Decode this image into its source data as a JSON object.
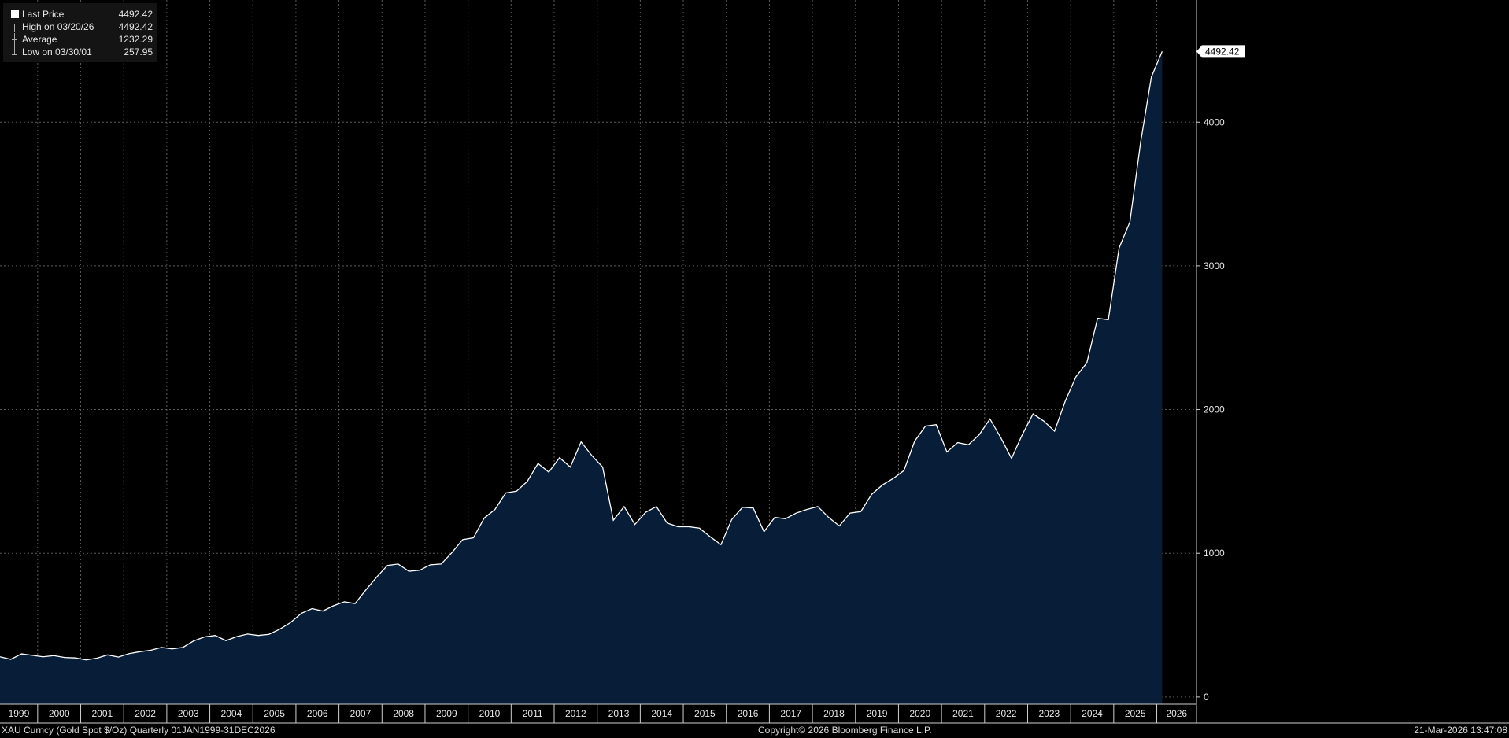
{
  "legend": {
    "last_label": "Last Price",
    "last_value": "4492.42",
    "high_label": "High on 03/20/26",
    "high_value": "4492.42",
    "avg_label": "Average",
    "avg_value": "1232.29",
    "low_label": "Low on 03/30/01",
    "low_value": "257.95"
  },
  "footer": {
    "left": "XAU Curncy (Gold Spot  $/Oz) Quarterly 01JAN1999-31DEC2026",
    "center": "Copyright© 2026 Bloomberg Finance L.P.",
    "right": "21-Mar-2026 13:47:08"
  },
  "colors": {
    "background": "#000000",
    "area_fill": "#071d38",
    "line": "#ffffff",
    "grid": "#5a5a5a",
    "last_price_tag": "#ffffff"
  },
  "chart_data": {
    "type": "area",
    "title": "",
    "xlabel": "",
    "ylabel": "",
    "ylim": [
      -50,
      4850
    ],
    "y_ticks": [
      0,
      1000,
      2000,
      3000,
      4000
    ],
    "x_tick_labels": [
      "1999",
      "2000",
      "2001",
      "2002",
      "2003",
      "2004",
      "2005",
      "2006",
      "2007",
      "2008",
      "2009",
      "2010",
      "2011",
      "2012",
      "2013",
      "2014",
      "2015",
      "2016",
      "2017",
      "2018",
      "2019",
      "2020",
      "2021",
      "2022",
      "2023",
      "2024",
      "2025",
      "2026"
    ],
    "grid": true,
    "last_price_label": "4492.42",
    "series": [
      {
        "x": [
          "1999-Q1",
          "1999-Q2",
          "1999-Q3",
          "1999-Q4",
          "2000-Q1",
          "2000-Q2",
          "2000-Q3",
          "2000-Q4",
          "2001-Q1",
          "2001-Q2",
          "2001-Q3",
          "2001-Q4",
          "2002-Q1",
          "2002-Q2",
          "2002-Q3",
          "2002-Q4",
          "2003-Q1",
          "2003-Q2",
          "2003-Q3",
          "2003-Q4",
          "2004-Q1",
          "2004-Q2",
          "2004-Q3",
          "2004-Q4",
          "2005-Q1",
          "2005-Q2",
          "2005-Q3",
          "2005-Q4",
          "2006-Q1",
          "2006-Q2",
          "2006-Q3",
          "2006-Q4",
          "2007-Q1",
          "2007-Q2",
          "2007-Q3",
          "2007-Q4",
          "2008-Q1",
          "2008-Q2",
          "2008-Q3",
          "2008-Q4",
          "2009-Q1",
          "2009-Q2",
          "2009-Q3",
          "2009-Q4",
          "2010-Q1",
          "2010-Q2",
          "2010-Q3",
          "2010-Q4",
          "2011-Q1",
          "2011-Q2",
          "2011-Q3",
          "2011-Q4",
          "2012-Q1",
          "2012-Q2",
          "2012-Q3",
          "2012-Q4",
          "2013-Q1",
          "2013-Q2",
          "2013-Q3",
          "2013-Q4",
          "2014-Q1",
          "2014-Q2",
          "2014-Q3",
          "2014-Q4",
          "2015-Q1",
          "2015-Q2",
          "2015-Q3",
          "2015-Q4",
          "2016-Q1",
          "2016-Q2",
          "2016-Q3",
          "2016-Q4",
          "2017-Q1",
          "2017-Q2",
          "2017-Q3",
          "2017-Q4",
          "2018-Q1",
          "2018-Q2",
          "2018-Q3",
          "2018-Q4",
          "2019-Q1",
          "2019-Q2",
          "2019-Q3",
          "2019-Q4",
          "2020-Q1",
          "2020-Q2",
          "2020-Q3",
          "2020-Q4",
          "2021-Q1",
          "2021-Q2",
          "2021-Q3",
          "2021-Q4",
          "2022-Q1",
          "2022-Q2",
          "2022-Q3",
          "2022-Q4",
          "2023-Q1",
          "2023-Q2",
          "2023-Q3",
          "2023-Q4",
          "2024-Q1",
          "2024-Q2",
          "2024-Q3",
          "2024-Q4",
          "2025-Q1",
          "2025-Q2",
          "2025-Q3",
          "2025-Q4",
          "2026-Q1"
        ],
        "values": [
          280,
          262,
          300,
          290,
          280,
          288,
          275,
          272,
          258,
          270,
          293,
          278,
          302,
          315,
          325,
          345,
          335,
          345,
          390,
          418,
          428,
          392,
          420,
          438,
          428,
          436,
          472,
          518,
          582,
          615,
          598,
          635,
          662,
          650,
          745,
          834,
          915,
          925,
          875,
          882,
          920,
          925,
          1005,
          1095,
          1108,
          1245,
          1305,
          1420,
          1432,
          1500,
          1625,
          1565,
          1665,
          1600,
          1775,
          1680,
          1600,
          1230,
          1325,
          1200,
          1285,
          1325,
          1210,
          1185,
          1185,
          1175,
          1115,
          1060,
          1235,
          1320,
          1315,
          1150,
          1250,
          1240,
          1280,
          1305,
          1325,
          1250,
          1190,
          1280,
          1290,
          1410,
          1475,
          1520,
          1575,
          1780,
          1885,
          1895,
          1705,
          1770,
          1755,
          1825,
          1935,
          1805,
          1660,
          1825,
          1970,
          1920,
          1850,
          2060,
          2230,
          2325,
          2635,
          2625,
          3125,
          3305,
          3860,
          4315,
          4492.42
        ]
      }
    ]
  }
}
